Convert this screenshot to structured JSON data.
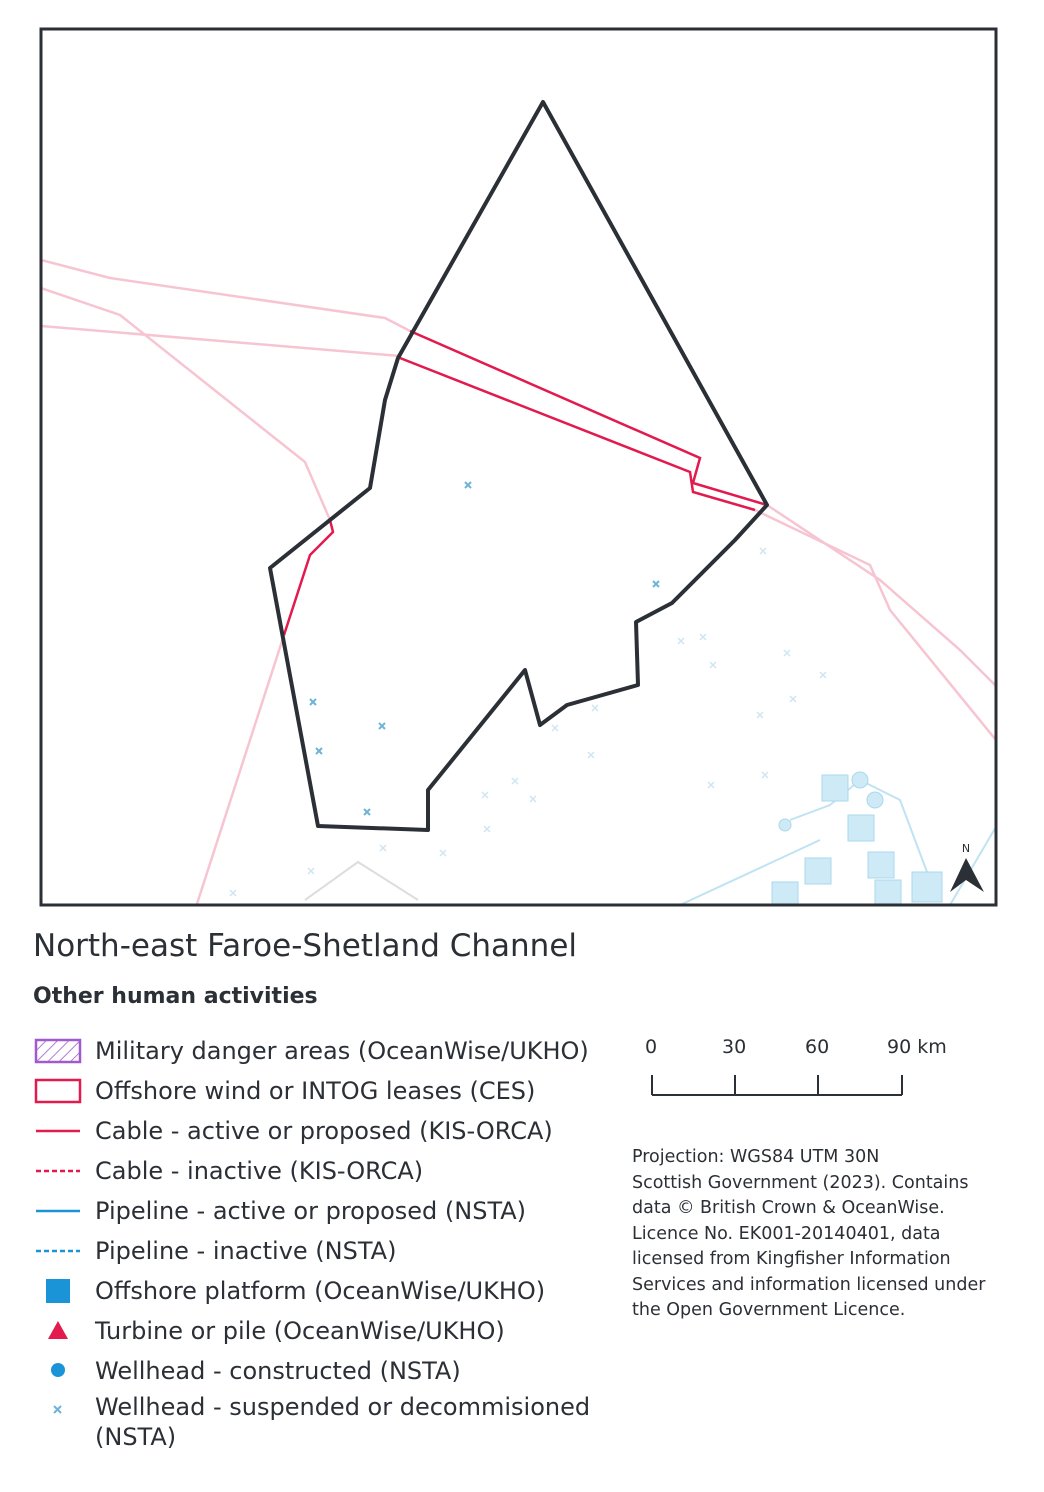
{
  "map": {
    "north_label": "N"
  },
  "title": "North-east Faroe-Shetland Channel",
  "subtitle": "Other human activities",
  "legend": [
    {
      "label": "Military danger areas (OceanWise/UKHO)"
    },
    {
      "label": "Offshore wind or INTOG leases (CES)"
    },
    {
      "label": "Cable - active or proposed (KIS-ORCA)"
    },
    {
      "label": "Cable - inactive (KIS-ORCA)"
    },
    {
      "label": "Pipeline - active or proposed (NSTA)"
    },
    {
      "label": "Pipeline - inactive (NSTA)"
    },
    {
      "label": "Offshore platform (OceanWise/UKHO)"
    },
    {
      "label": "Turbine or pile (OceanWise/UKHO)"
    },
    {
      "label": "Wellhead - constructed (NSTA)"
    },
    {
      "label": "Wellhead - suspended or decommisioned (NSTA)"
    }
  ],
  "scale_bar": {
    "labels": [
      "0",
      "30",
      "60",
      "90 km"
    ]
  },
  "attribution": [
    "Projection: WGS84 UTM 30N",
    "Scottish Government (2023). Contains",
    "data © British Crown & OceanWise.",
    "Licence No. EK001-20140401, data",
    "licensed from Kingfisher Information",
    "Services and information licensed under",
    "the Open Government Licence."
  ]
}
